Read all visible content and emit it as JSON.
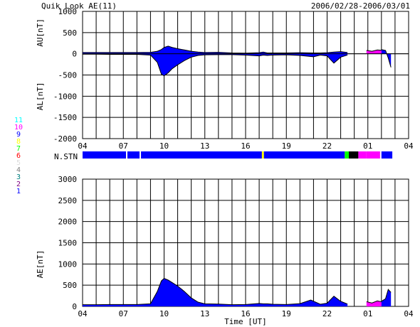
{
  "header": {
    "title": "Quik Look AE(11)",
    "date_range": "2006/02/28-2006/03/01"
  },
  "chart_data": [
    {
      "type": "area",
      "name": "AU/AL",
      "ylabel_upper": "AU[nT]",
      "ylabel_lower": "AL[nT]",
      "ylim": [
        -2000,
        1000
      ],
      "yticks": [
        1000,
        500,
        0,
        -500,
        -1000,
        -1500,
        -2000
      ],
      "xlim": [
        4,
        28
      ],
      "xticks": [
        "04",
        "07",
        "10",
        "13",
        "16",
        "19",
        "22",
        "01",
        "04"
      ],
      "grid": true,
      "fill_color": "#0000ff",
      "line_color": "#000000",
      "series": [
        {
          "x": [
            4.0,
            5.0,
            6.0,
            7.0,
            8.0,
            9.0,
            9.5,
            9.8,
            10.0,
            10.3,
            10.6,
            11.0,
            11.5,
            12.0,
            12.5,
            13.0,
            14.0,
            15.0,
            16.0,
            17.0,
            17.3,
            17.6,
            18.0,
            19.0,
            20.0,
            21.0,
            21.5,
            22.0,
            22.5,
            23.0,
            23.5
          ],
          "values": [
            30,
            30,
            30,
            30,
            30,
            35,
            60,
            100,
            150,
            180,
            150,
            120,
            90,
            60,
            40,
            30,
            35,
            20,
            15,
            25,
            40,
            20,
            20,
            20,
            25,
            20,
            20,
            25,
            40,
            50,
            30
          ]
        },
        {
          "x": [
            4.0,
            5.0,
            6.0,
            7.0,
            8.0,
            9.0,
            9.5,
            9.8,
            10.0,
            10.3,
            10.6,
            11.0,
            11.5,
            12.0,
            12.5,
            13.0,
            14.0,
            15.0,
            16.0,
            17.0,
            17.3,
            17.6,
            18.0,
            19.0,
            20.0,
            21.0,
            21.5,
            22.0,
            22.5,
            23.0,
            23.5
          ],
          "values": [
            -10,
            -10,
            -15,
            -15,
            -15,
            -30,
            -200,
            -480,
            -520,
            -450,
            -350,
            -260,
            -160,
            -80,
            -40,
            -25,
            -20,
            -20,
            -30,
            -50,
            -30,
            -40,
            -30,
            -25,
            -40,
            -70,
            -30,
            -50,
            -220,
            -80,
            -30
          ]
        },
        {
          "color": "#ff00ff",
          "x": [
            24.9,
            25.3,
            25.7,
            26.1
          ],
          "values": [
            80,
            60,
            90,
            80
          ]
        },
        {
          "color": "#0000ff",
          "x": [
            26.0,
            26.3,
            26.5,
            26.7
          ],
          "values": [
            100,
            80,
            -100,
            -320
          ]
        }
      ]
    },
    {
      "type": "area",
      "name": "AE",
      "ylabel": "AE[nT]",
      "xlabel": "Time [UT]",
      "ylim": [
        0,
        3000
      ],
      "yticks": [
        3000,
        2500,
        2000,
        1500,
        1000,
        500,
        0
      ],
      "xlim": [
        4,
        28
      ],
      "xticks": [
        "04",
        "07",
        "10",
        "13",
        "16",
        "19",
        "22",
        "01",
        "04"
      ],
      "grid": true,
      "fill_color": "#0000ff",
      "line_color": "#000000",
      "series": [
        {
          "x": [
            4.0,
            5.0,
            6.0,
            7.0,
            8.0,
            9.0,
            9.5,
            9.8,
            10.0,
            10.3,
            10.6,
            11.0,
            11.5,
            12.0,
            12.5,
            13.0,
            14.0,
            15.0,
            16.0,
            17.0,
            17.3,
            17.6,
            18.0,
            19.0,
            20.0,
            20.8,
            21.5,
            22.0,
            22.5,
            23.0,
            23.5
          ],
          "values": [
            40,
            40,
            45,
            45,
            45,
            60,
            350,
            600,
            660,
            620,
            560,
            480,
            350,
            200,
            100,
            60,
            55,
            40,
            45,
            70,
            60,
            60,
            50,
            45,
            65,
            150,
            50,
            75,
            240,
            120,
            55
          ]
        },
        {
          "color": "#ff00ff",
          "x": [
            24.9,
            25.3,
            25.7,
            26.1
          ],
          "values": [
            110,
            80,
            130,
            100
          ]
        },
        {
          "color": "#0000ff",
          "x": [
            26.0,
            26.3,
            26.5,
            26.7
          ],
          "values": [
            120,
            180,
            400,
            330
          ]
        }
      ]
    }
  ],
  "station_bar": {
    "label": "N.STN",
    "segments": [
      {
        "start": 4.0,
        "end": 7.2,
        "color": "#0000ff"
      },
      {
        "start": 7.2,
        "end": 7.3,
        "color": "#ffffff"
      },
      {
        "start": 7.3,
        "end": 8.2,
        "color": "#0000ff"
      },
      {
        "start": 8.2,
        "end": 8.3,
        "color": "#ffffff"
      },
      {
        "start": 8.3,
        "end": 17.2,
        "color": "#0000ff"
      },
      {
        "start": 17.2,
        "end": 17.35,
        "color": "#ffff00"
      },
      {
        "start": 17.35,
        "end": 23.3,
        "color": "#0000ff"
      },
      {
        "start": 23.3,
        "end": 23.6,
        "color": "#00ff00"
      },
      {
        "start": 23.6,
        "end": 24.3,
        "color": "#000000"
      },
      {
        "start": 24.3,
        "end": 24.9,
        "color": "#ff00ff"
      },
      {
        "start": 24.9,
        "end": 25.9,
        "color": "#ff00ff"
      },
      {
        "start": 25.9,
        "end": 26.0,
        "color": "#ffffff"
      },
      {
        "start": 26.0,
        "end": 26.8,
        "color": "#0000ff"
      }
    ]
  },
  "station_legend": [
    {
      "label": "11",
      "color": "#00ffff"
    },
    {
      "label": "10",
      "color": "#ff00ff"
    },
    {
      "label": "9",
      "color": "#0000ff"
    },
    {
      "label": "8",
      "color": "#ffff00"
    },
    {
      "label": "7",
      "color": "#00ff00"
    },
    {
      "label": "6",
      "color": "#ff0000"
    },
    {
      "label": "5",
      "color": "#ffffff"
    },
    {
      "label": "4",
      "color": "#808080"
    },
    {
      "label": "3",
      "color": "#008080"
    },
    {
      "label": "2",
      "color": "#800080"
    },
    {
      "label": "1",
      "color": "#0000ff"
    }
  ]
}
